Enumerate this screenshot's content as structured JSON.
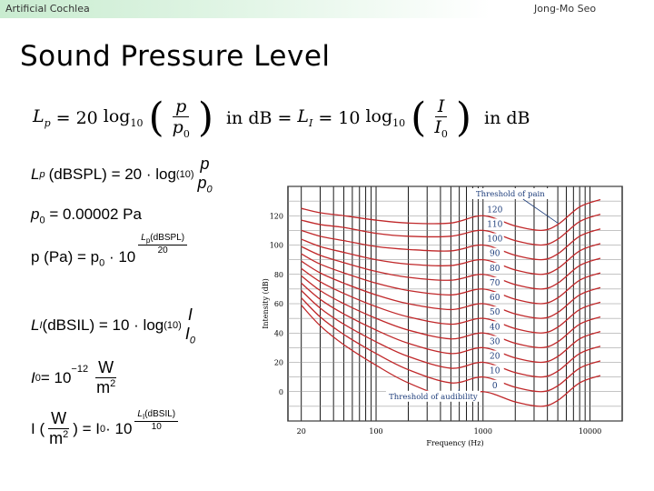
{
  "header": {
    "left": "Artificial Cochlea",
    "right": "Jong-Mo Seo"
  },
  "slide": {
    "title": "Sound Pressure Level"
  },
  "formulas": {
    "main": {
      "lp": "L",
      "lp_sub": "p",
      "eq": "=",
      "twenty": "20",
      "log": "log",
      "ten": "10",
      "p": "p",
      "p0": "p",
      "p0_sub": "0",
      "in_db1": "in dB",
      "li": "L",
      "li_sub": "I",
      "eq2": "=",
      "ten2": "10",
      "log2": "log",
      "ten3": "10",
      "I": "I",
      "I0": "I",
      "I0_sub": "0",
      "in_db2": "in dB"
    },
    "f1": {
      "L": "L",
      "sub": "p",
      "text": "(dBSPL) = 20 · log",
      "base": "(10)",
      "num": "p",
      "den": "p",
      "den_sub": "0"
    },
    "f2": {
      "text": "p",
      "sub": "0",
      "rest": " = 0.00002 Pa"
    },
    "f3": {
      "lhs": "p (Pa)  = p",
      "sub": "0",
      "mul": " · 10",
      "exp_num": "L",
      "exp_num_sub": "p",
      "exp_num_rest": "(dBSPL)",
      "exp_den": "20"
    },
    "f4": {
      "L": "L",
      "sub": "I",
      "text": " (dBSIL)  = 10 · log",
      "base": "(10)",
      "num": "I",
      "den": "I",
      "den_sub": "0"
    },
    "f5": {
      "I": "I",
      "sub": "0",
      "rest": " = 10",
      "exp": "−12",
      "num": "W",
      "den": "m",
      "den_sup": "2"
    },
    "f6": {
      "lhs": "I (",
      "num": "W",
      "den": "m",
      "den_sup": "2",
      "rhs": " ) = I",
      "sub": "0",
      "mul": " · 10",
      "exp_num": "L",
      "exp_num_sub": "I",
      "exp_num_rest": "(dBSIL)",
      "exp_den": "10"
    }
  },
  "chart_data": {
    "type": "line",
    "title": "",
    "xlabel": "Frequency (Hz)",
    "ylabel": "Intensity (dB)",
    "x_scale": "log",
    "xlim": [
      15,
      20000
    ],
    "ylim": [
      -20,
      140
    ],
    "x_ticks": [
      20,
      100,
      1000,
      10000
    ],
    "y_ticks": [
      0,
      20,
      40,
      60,
      80,
      100,
      120
    ],
    "grid": true,
    "line_color": "#c0282a",
    "phon_labels": [
      "120",
      "110",
      "100",
      "90",
      "80",
      "70",
      "60",
      "50",
      "40",
      "30",
      "20",
      "10",
      "0"
    ],
    "annotations": [
      "Threshold of pain",
      "Threshold of audibility"
    ],
    "series": [
      {
        "phon": 120,
        "x": [
          20,
          30,
          50,
          100,
          200,
          500,
          1000,
          2000,
          3500,
          5000,
          8000,
          12500
        ],
        "y": [
          125,
          122,
          120,
          117,
          115,
          115,
          120,
          113,
          110,
          114,
          126,
          131
        ]
      },
      {
        "phon": 110,
        "x": [
          20,
          30,
          50,
          100,
          200,
          500,
          1000,
          2000,
          3500,
          5000,
          8000,
          12500
        ],
        "y": [
          117,
          114,
          112,
          108,
          106,
          106,
          110,
          103,
          100,
          104,
          116,
          121
        ]
      },
      {
        "phon": 100,
        "x": [
          20,
          30,
          50,
          100,
          200,
          500,
          1000,
          2000,
          3500,
          5000,
          8000,
          12500
        ],
        "y": [
          110,
          106,
          103,
          99,
          97,
          96,
          100,
          93,
          90,
          94,
          106,
          111
        ]
      },
      {
        "phon": 90,
        "x": [
          20,
          30,
          50,
          100,
          200,
          500,
          1000,
          2000,
          3500,
          5000,
          8000,
          12500
        ],
        "y": [
          104,
          99,
          95,
          90,
          87,
          86,
          90,
          83,
          80,
          84,
          96,
          101
        ]
      },
      {
        "phon": 80,
        "x": [
          20,
          30,
          50,
          100,
          200,
          500,
          1000,
          2000,
          3500,
          5000,
          8000,
          12500
        ],
        "y": [
          99,
          93,
          88,
          82,
          78,
          76,
          80,
          73,
          70,
          74,
          86,
          91
        ]
      },
      {
        "phon": 70,
        "x": [
          20,
          30,
          50,
          100,
          200,
          500,
          1000,
          2000,
          3500,
          5000,
          8000,
          12500
        ],
        "y": [
          94,
          87,
          81,
          74,
          69,
          66,
          70,
          63,
          60,
          64,
          76,
          81
        ]
      },
      {
        "phon": 60,
        "x": [
          20,
          30,
          50,
          100,
          200,
          500,
          1000,
          2000,
          3500,
          5000,
          8000,
          12500
        ],
        "y": [
          89,
          81,
          74,
          66,
          60,
          56,
          60,
          53,
          50,
          54,
          66,
          71
        ]
      },
      {
        "phon": 50,
        "x": [
          20,
          30,
          50,
          100,
          200,
          500,
          1000,
          2000,
          3500,
          5000,
          8000,
          12500
        ],
        "y": [
          84,
          75,
          67,
          58,
          51,
          46,
          50,
          43,
          40,
          44,
          56,
          61
        ]
      },
      {
        "phon": 40,
        "x": [
          20,
          30,
          50,
          100,
          200,
          500,
          1000,
          2000,
          3500,
          5000,
          8000,
          12500
        ],
        "y": [
          79,
          69,
          60,
          50,
          42,
          36,
          40,
          33,
          30,
          34,
          46,
          51
        ]
      },
      {
        "phon": 30,
        "x": [
          20,
          30,
          50,
          100,
          200,
          500,
          1000,
          2000,
          3500,
          5000,
          8000,
          12500
        ],
        "y": [
          74,
          63,
          53,
          42,
          33,
          26,
          30,
          23,
          20,
          24,
          36,
          41
        ]
      },
      {
        "phon": 20,
        "x": [
          20,
          30,
          50,
          100,
          200,
          500,
          1000,
          2000,
          3500,
          5000,
          8000,
          12500
        ],
        "y": [
          69,
          57,
          46,
          34,
          24,
          16,
          20,
          13,
          10,
          14,
          26,
          31
        ]
      },
      {
        "phon": 10,
        "x": [
          20,
          30,
          50,
          100,
          200,
          500,
          1000,
          2000,
          3500,
          5000,
          8000,
          12500
        ],
        "y": [
          64,
          51,
          39,
          26,
          15,
          6,
          10,
          3,
          0,
          4,
          16,
          21
        ]
      },
      {
        "phon": 0,
        "x": [
          20,
          30,
          50,
          100,
          200,
          500,
          1000,
          2000,
          3500,
          5000,
          8000,
          12500
        ],
        "y": [
          59,
          45,
          32,
          18,
          6,
          -4,
          0,
          -7,
          -10,
          -6,
          6,
          11
        ]
      }
    ]
  }
}
